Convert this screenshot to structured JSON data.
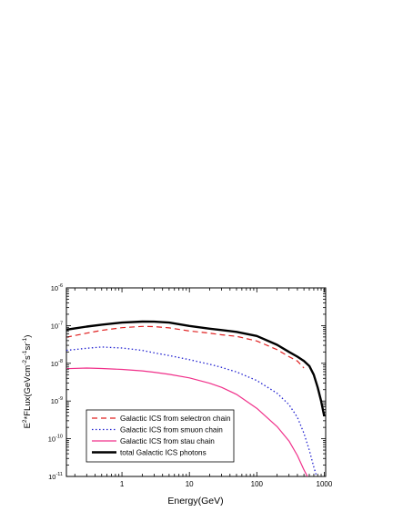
{
  "chart_data": {
    "type": "line",
    "xlabel": "Energy(GeV)",
    "ylabel_parts": {
      "base": "E",
      "sup1": "2",
      "mid1": "*FLux(GeVcm",
      "sup2": "-2",
      "mid2": "s",
      "sup3": "-1",
      "mid3": "sr",
      "sup4": "-1",
      "end": ")"
    },
    "x_scale": "log",
    "y_scale": "log",
    "xlim": [
      0.15,
      1050
    ],
    "ylim": [
      1e-11,
      1e-06
    ],
    "x_ticks": [
      {
        "v": 1,
        "label": "1"
      },
      {
        "v": 10,
        "label": "10"
      },
      {
        "v": 100,
        "label": "100"
      },
      {
        "v": 1000,
        "label": "1000"
      }
    ],
    "y_ticks": [
      {
        "v": 1e-11,
        "base": "10",
        "exp": "-11"
      },
      {
        "v": 1e-10,
        "base": "10",
        "exp": "-10"
      },
      {
        "v": 1e-09,
        "base": "10",
        "exp": "-9"
      },
      {
        "v": 1e-08,
        "base": "10",
        "exp": "-8"
      },
      {
        "v": 1e-07,
        "base": "10",
        "exp": "-7"
      },
      {
        "v": 1e-06,
        "base": "10",
        "exp": "-6"
      }
    ],
    "legend_position": "bottom-left",
    "series": [
      {
        "name": "Galactic ICS from selectron chain",
        "color": "#e02020",
        "dash": "6,4",
        "width": 1.2,
        "x": [
          0.15,
          0.3,
          0.5,
          1,
          2,
          3,
          5,
          10,
          20,
          30,
          50,
          100,
          200,
          300,
          400,
          500
        ],
        "y": [
          4.9e-08,
          6.3e-08,
          7.5e-08,
          8.8e-08,
          9.5e-08,
          9.4e-08,
          8.7e-08,
          7.2e-08,
          6.3e-08,
          5.7e-08,
          5.2e-08,
          3.9e-08,
          2.3e-08,
          1.5e-08,
          1.15e-08,
          7.5e-09
        ]
      },
      {
        "name": "Galactic ICS from smuon chain",
        "color": "#2020d0",
        "dash": "1.5,2.5",
        "width": 1.3,
        "x": [
          0.15,
          0.3,
          0.5,
          1,
          2,
          3,
          5,
          10,
          20,
          30,
          50,
          100,
          200,
          300,
          400,
          500,
          600,
          700,
          800
        ],
        "y": [
          2.2e-08,
          2.5e-08,
          2.7e-08,
          2.55e-08,
          2.2e-08,
          1.9e-08,
          1.6e-08,
          1.25e-08,
          9.4e-09,
          7.8e-09,
          5.9e-09,
          3.5e-09,
          1.6e-09,
          8e-10,
          3.7e-10,
          1.4e-10,
          5e-11,
          1.8e-11,
          8e-12
        ]
      },
      {
        "name": "Galactic ICS from stau chain",
        "color": "#f0308a",
        "dash": "",
        "width": 1.2,
        "x": [
          0.15,
          0.3,
          0.5,
          1,
          2,
          3,
          5,
          10,
          20,
          30,
          50,
          100,
          200,
          300,
          400,
          500,
          600,
          700
        ],
        "y": [
          7.2e-09,
          7.5e-09,
          7.3e-09,
          6.9e-09,
          6.3e-09,
          5.8e-09,
          5.1e-09,
          4.1e-09,
          2.95e-09,
          2.3e-09,
          1.5e-09,
          6.4e-10,
          2.1e-10,
          8.7e-11,
          3.6e-11,
          1.5e-11,
          8e-12,
          4e-12
        ]
      },
      {
        "name": "total Galactic ICS photons",
        "color": "#000000",
        "dash": "",
        "width": 2.4,
        "x": [
          0.15,
          0.3,
          0.5,
          1,
          2,
          3,
          5,
          10,
          20,
          30,
          50,
          100,
          200,
          300,
          400,
          500,
          600,
          700,
          800,
          900,
          1000
        ],
        "y": [
          7.8e-08,
          9.4e-08,
          1.06e-07,
          1.2e-07,
          1.28e-07,
          1.27e-07,
          1.2e-07,
          9.8e-08,
          8.3e-08,
          7.6e-08,
          6.8e-08,
          5.3e-08,
          3.1e-08,
          2e-08,
          1.5e-08,
          1.15e-08,
          8.5e-09,
          5e-09,
          2.3e-09,
          1e-09,
          4e-10
        ]
      }
    ]
  }
}
